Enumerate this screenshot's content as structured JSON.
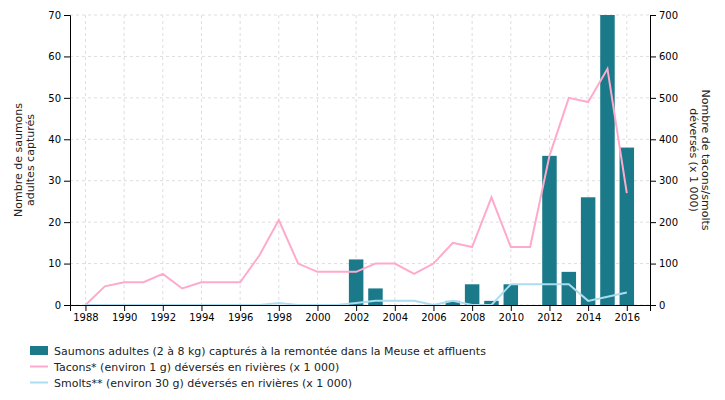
{
  "chart_data": {
    "type": "bar",
    "x": [
      1988,
      1989,
      1990,
      1991,
      1992,
      1993,
      1994,
      1995,
      1996,
      1997,
      1998,
      1999,
      2000,
      2001,
      2002,
      2003,
      2004,
      2005,
      2006,
      2007,
      2008,
      2009,
      2010,
      2011,
      2012,
      2013,
      2014,
      2015,
      2016
    ],
    "series": [
      {
        "name": "Saumons adultes (2 à 8 kg) capturés à la remontée dans la Meuse et affluents",
        "type": "bar",
        "color": "#1a7a8a",
        "values": [
          0,
          0,
          0,
          0,
          0,
          0,
          0,
          0,
          0,
          0,
          0,
          0,
          0,
          0,
          11,
          4,
          0,
          0,
          0,
          1,
          5,
          1,
          5,
          0,
          36,
          8,
          26,
          70,
          38
        ]
      },
      {
        "name": "Tacons* (environ 1 g) déversés en rivières (x 1 000)",
        "type": "line",
        "axis": "y2",
        "color": "#ffaacc",
        "values": [
          0,
          45,
          55,
          55,
          75,
          40,
          55,
          55,
          55,
          120,
          205,
          100,
          80,
          80,
          80,
          100,
          100,
          75,
          100,
          150,
          140,
          260,
          140,
          140,
          360,
          500,
          490,
          570,
          270
        ]
      },
      {
        "name": "Smolts** (environ 30 g) déversés en rivières (x 1 000)",
        "type": "line",
        "axis": "y2",
        "color": "#aaddee",
        "values": [
          0,
          0,
          0,
          0,
          0,
          0,
          0,
          0,
          0,
          0,
          5,
          0,
          0,
          0,
          5,
          10,
          10,
          10,
          0,
          10,
          0,
          0,
          50,
          50,
          50,
          50,
          10,
          20,
          30
        ]
      }
    ],
    "ylabel": "Nombre de saumons\nadultes capturés",
    "y2label": "Nombre de tacons/smolts\ndéversés (x 1 000)",
    "xlim": [
      1987.2,
      2017.2
    ],
    "xticks": [
      1988,
      1990,
      1992,
      1994,
      1996,
      1998,
      2000,
      2002,
      2004,
      2006,
      2008,
      2010,
      2012,
      2014,
      2016
    ],
    "ylim": [
      0,
      70
    ],
    "yticks": [
      0,
      10,
      20,
      30,
      40,
      50,
      60,
      70
    ],
    "y2lim": [
      0,
      700
    ],
    "y2ticks": [
      0,
      100,
      200,
      300,
      400,
      500,
      600,
      700
    ],
    "grid": true,
    "legend": "bottom"
  }
}
